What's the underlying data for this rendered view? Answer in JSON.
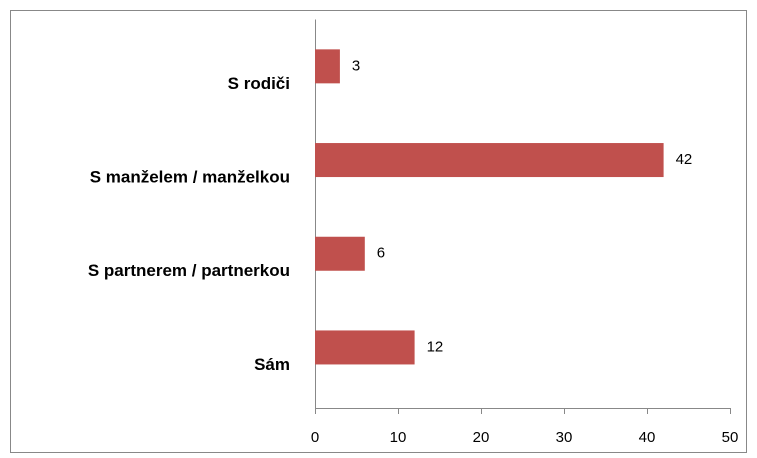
{
  "chart_data": {
    "type": "bar",
    "orientation": "horizontal",
    "categories": [
      "S rodiči",
      "S manželem / manželkou",
      "S partnerem / partnerkou",
      "Sám"
    ],
    "values": [
      3,
      42,
      6,
      12
    ],
    "color": "#c0504d",
    "xlim": [
      0,
      50
    ],
    "xticks": [
      0,
      10,
      20,
      30,
      40,
      50
    ],
    "grid": false
  }
}
